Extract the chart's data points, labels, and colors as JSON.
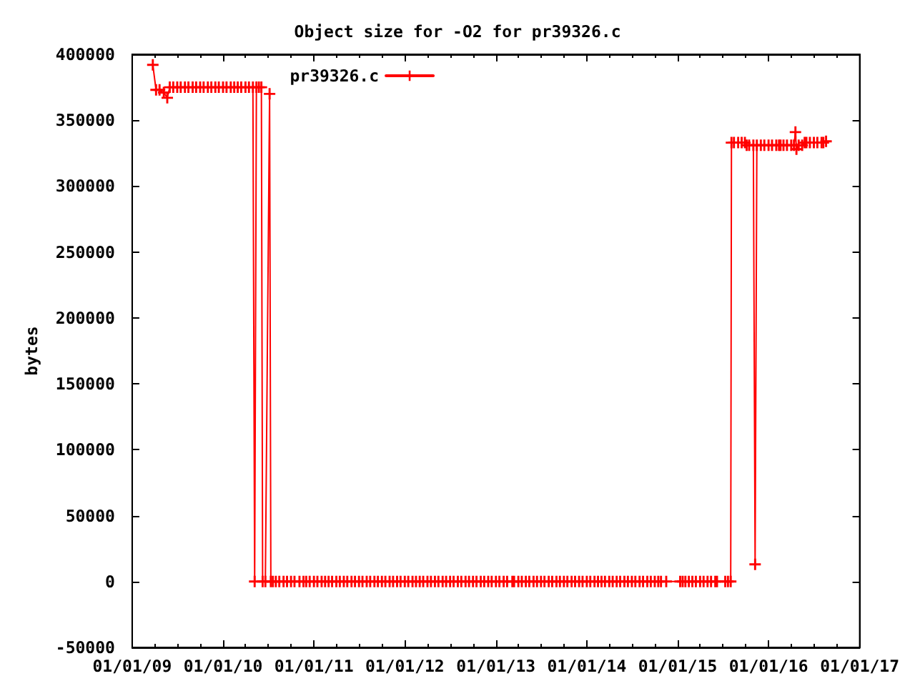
{
  "chart_data": {
    "type": "line",
    "title": "Object size for -O2 for pr39326.c",
    "ylabel": "bytes",
    "x": [
      "2009-03-25",
      "2009-04-07",
      "2009-04-21",
      "2009-05-08",
      "2009-05-22",
      "2009-06-01",
      "2009-06-15",
      "2009-07-01",
      "2009-07-15",
      "2009-08-01",
      "2009-08-15",
      "2009-09-01",
      "2009-09-15",
      "2009-10-01",
      "2009-10-15",
      "2009-11-01",
      "2009-11-15",
      "2009-12-01",
      "2009-12-15",
      "2010-01-01",
      "2010-01-15",
      "2010-02-01",
      "2010-02-15",
      "2010-03-01",
      "2010-03-15",
      "2010-04-01",
      "2010-04-15",
      "2010-05-01",
      "2010-05-08",
      "2010-05-15",
      "2010-05-25",
      "2010-06-04",
      "2010-06-09",
      "2010-06-20",
      "2010-07-07",
      "2010-07-12",
      "2010-07-20",
      "2010-08-01",
      "2010-08-15",
      "2010-09-01",
      "2010-09-15",
      "2010-10-01",
      "2010-10-15",
      "2010-11-04",
      "2010-11-20",
      "2010-12-01",
      "2010-12-15",
      "2011-01-01",
      "2011-01-15",
      "2011-02-01",
      "2011-02-15",
      "2011-03-01",
      "2011-03-15",
      "2011-04-01",
      "2011-04-15",
      "2011-05-01",
      "2011-05-15",
      "2011-06-01",
      "2011-06-15",
      "2011-07-01",
      "2011-07-15",
      "2011-08-01",
      "2011-08-15",
      "2011-09-01",
      "2011-09-15",
      "2011-10-01",
      "2011-10-15",
      "2011-11-01",
      "2011-11-15",
      "2011-12-01",
      "2011-12-15",
      "2012-01-01",
      "2012-01-15",
      "2012-02-01",
      "2012-02-15",
      "2012-03-01",
      "2012-03-15",
      "2012-04-01",
      "2012-04-15",
      "2012-05-01",
      "2012-05-15",
      "2012-06-01",
      "2012-06-15",
      "2012-07-01",
      "2012-07-15",
      "2012-08-01",
      "2012-08-15",
      "2012-09-01",
      "2012-09-15",
      "2012-10-01",
      "2012-10-15",
      "2012-11-01",
      "2012-11-15",
      "2012-12-01",
      "2012-12-15",
      "2013-01-01",
      "2013-01-15",
      "2013-02-01",
      "2013-02-15",
      "2013-03-08",
      "2013-03-15",
      "2013-04-01",
      "2013-04-15",
      "2013-05-01",
      "2013-05-15",
      "2013-06-01",
      "2013-06-15",
      "2013-07-01",
      "2013-07-15",
      "2013-08-01",
      "2013-08-15",
      "2013-09-01",
      "2013-09-15",
      "2013-10-01",
      "2013-10-15",
      "2013-11-01",
      "2013-11-15",
      "2013-12-01",
      "2013-12-15",
      "2014-01-01",
      "2014-01-15",
      "2014-02-01",
      "2014-02-15",
      "2014-03-01",
      "2014-03-15",
      "2014-04-01",
      "2014-04-15",
      "2014-05-01",
      "2014-05-15",
      "2014-06-01",
      "2014-06-15",
      "2014-07-01",
      "2014-07-15",
      "2014-08-01",
      "2014-08-15",
      "2014-09-01",
      "2014-09-15",
      "2014-10-01",
      "2014-10-15",
      "2014-10-26",
      "2014-11-16",
      "2015-01-11",
      "2015-01-21",
      "2015-02-01",
      "2015-02-15",
      "2015-03-01",
      "2015-03-15",
      "2015-04-01",
      "2015-04-15",
      "2015-05-01",
      "2015-05-15",
      "2015-06-01",
      "2015-06-08",
      "2015-07-11",
      "2015-07-22",
      "2015-08-02",
      "2015-08-05",
      "2015-08-15",
      "2015-09-01",
      "2015-09-15",
      "2015-09-28",
      "2015-10-05",
      "2015-10-15",
      "2015-11-01",
      "2015-11-08",
      "2015-11-15",
      "2015-12-01",
      "2015-12-15",
      "2016-01-01",
      "2016-01-15",
      "2016-02-01",
      "2016-02-12",
      "2016-02-18",
      "2016-03-01",
      "2016-03-15",
      "2016-04-01",
      "2016-04-12",
      "2016-04-18",
      "2016-04-22",
      "2016-05-01",
      "2016-05-15",
      "2016-05-25",
      "2016-06-01",
      "2016-06-15",
      "2016-07-01",
      "2016-07-15",
      "2016-08-01",
      "2016-08-08",
      "2016-08-19"
    ],
    "series": [
      {
        "name": "pr39326.c",
        "color": "#ff0000",
        "values": [
          392000,
          373000,
          373000,
          371000,
          367000,
          375000,
          375000,
          375000,
          375000,
          375000,
          375000,
          375000,
          375000,
          375000,
          375000,
          375000,
          375000,
          375000,
          375000,
          375000,
          375000,
          375000,
          375000,
          375000,
          375000,
          375000,
          375000,
          375000,
          0,
          375000,
          375000,
          375000,
          0,
          0,
          370000,
          0,
          0,
          0,
          0,
          0,
          0,
          0,
          0,
          0,
          0,
          0,
          0,
          0,
          0,
          0,
          0,
          0,
          0,
          0,
          0,
          0,
          0,
          0,
          0,
          0,
          0,
          0,
          0,
          0,
          0,
          0,
          0,
          0,
          0,
          0,
          0,
          0,
          0,
          0,
          0,
          0,
          0,
          0,
          0,
          0,
          0,
          0,
          0,
          0,
          0,
          0,
          0,
          0,
          0,
          0,
          0,
          0,
          0,
          0,
          0,
          0,
          0,
          0,
          0,
          0,
          0,
          0,
          0,
          0,
          0,
          0,
          0,
          0,
          0,
          0,
          0,
          0,
          0,
          0,
          0,
          0,
          0,
          0,
          0,
          0,
          0,
          0,
          0,
          0,
          0,
          0,
          0,
          0,
          0,
          0,
          0,
          0,
          0,
          0,
          0,
          0,
          0,
          0,
          0,
          0,
          0,
          0,
          0,
          0,
          0,
          0,
          0,
          0,
          0,
          0,
          0,
          0,
          0,
          0,
          0,
          0,
          333000,
          333000,
          333000,
          333000,
          333000,
          331000,
          331000,
          331000,
          13000,
          331000,
          331000,
          331000,
          331000,
          331000,
          331000,
          331000,
          331000,
          331000,
          331000,
          331000,
          331000,
          341000,
          328000,
          331000,
          331000,
          333000,
          333000,
          333000,
          333000,
          333000,
          333000,
          333000,
          334000
        ]
      }
    ],
    "xlim": [
      "2009-01-01",
      "2017-01-01"
    ],
    "xticks": [
      {
        "value": "2009-01-01",
        "label": "01/01/09"
      },
      {
        "value": "2009-04-01",
        "label": null
      },
      {
        "value": "2009-07-01",
        "label": null
      },
      {
        "value": "2009-10-01",
        "label": null
      },
      {
        "value": "2010-01-01",
        "label": "01/01/10"
      },
      {
        "value": "2010-04-01",
        "label": null
      },
      {
        "value": "2010-07-01",
        "label": null
      },
      {
        "value": "2010-10-01",
        "label": null
      },
      {
        "value": "2011-01-01",
        "label": "01/01/11"
      },
      {
        "value": "2011-04-01",
        "label": null
      },
      {
        "value": "2011-07-01",
        "label": null
      },
      {
        "value": "2011-10-01",
        "label": null
      },
      {
        "value": "2012-01-01",
        "label": "01/01/12"
      },
      {
        "value": "2012-04-01",
        "label": null
      },
      {
        "value": "2012-07-01",
        "label": null
      },
      {
        "value": "2012-10-01",
        "label": null
      },
      {
        "value": "2013-01-01",
        "label": "01/01/13"
      },
      {
        "value": "2013-04-01",
        "label": null
      },
      {
        "value": "2013-07-01",
        "label": null
      },
      {
        "value": "2013-10-01",
        "label": null
      },
      {
        "value": "2014-01-01",
        "label": "01/01/14"
      },
      {
        "value": "2014-04-01",
        "label": null
      },
      {
        "value": "2014-07-01",
        "label": null
      },
      {
        "value": "2014-10-01",
        "label": null
      },
      {
        "value": "2015-01-01",
        "label": "01/01/15"
      },
      {
        "value": "2015-04-01",
        "label": null
      },
      {
        "value": "2015-07-01",
        "label": null
      },
      {
        "value": "2015-10-01",
        "label": null
      },
      {
        "value": "2016-01-01",
        "label": "01/01/16"
      },
      {
        "value": "2016-04-01",
        "label": null
      },
      {
        "value": "2016-07-01",
        "label": null
      },
      {
        "value": "2016-10-01",
        "label": null
      },
      {
        "value": "2017-01-01",
        "label": "01/01/17"
      }
    ],
    "ylim": [
      -50000,
      400000
    ],
    "yticks": [
      -50000,
      0,
      50000,
      100000,
      150000,
      200000,
      250000,
      300000,
      350000,
      400000
    ],
    "legend": "top left",
    "marker": "cross"
  }
}
